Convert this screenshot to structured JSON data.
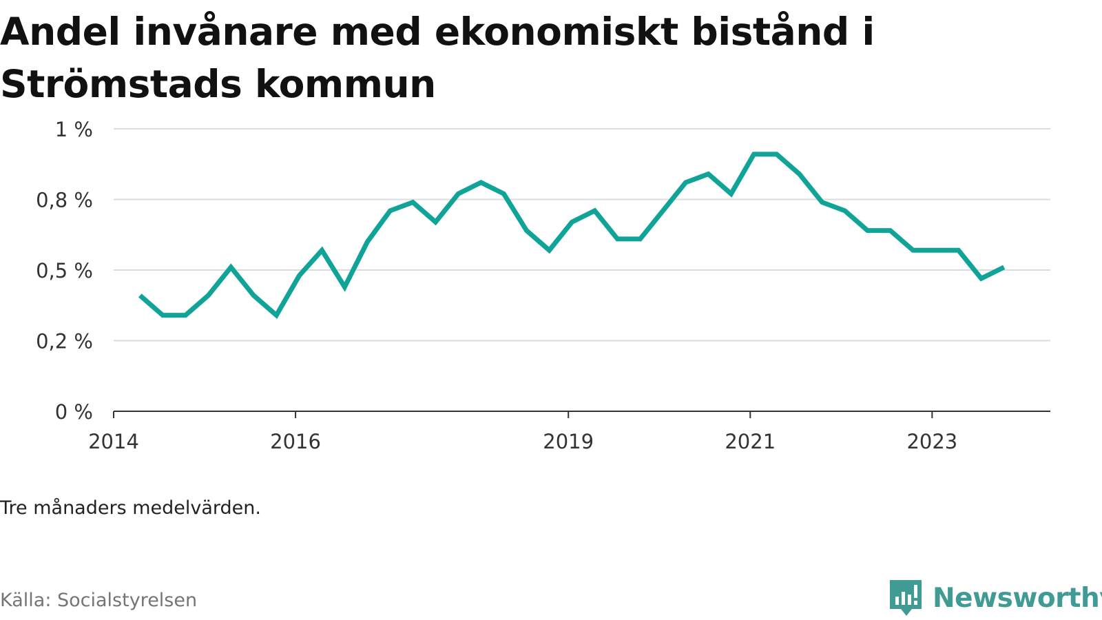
{
  "title": "Andel invånare med ekonomiskt bistånd i Strömstads kommun",
  "note": "Tre månaders medelvärden.",
  "source": "Källa: Socialstyrelsen",
  "brand": {
    "name": "Newsworthy",
    "icon": "newsworthy-logo-icon",
    "color": "#3f9b93"
  },
  "chart_data": {
    "type": "line",
    "title": "Andel invånare med ekonomiskt bistånd i Strömstads kommun",
    "xlabel": "",
    "ylabel": "",
    "xlim": [
      2014.0,
      2024.3
    ],
    "ylim": [
      0,
      1.0
    ],
    "y_ticks": [
      0,
      0.25,
      0.5,
      0.75,
      1.0
    ],
    "y_tick_labels": [
      "0 %",
      "0,2 %",
      "0,5 %",
      "0,8 %",
      "1 %"
    ],
    "x_ticks": [
      2014,
      2016,
      2019,
      2021,
      2023
    ],
    "x_tick_labels": [
      "2014",
      "2016",
      "2019",
      "2021",
      "2023"
    ],
    "grid": true,
    "line_color": "#0fa497",
    "series": [
      {
        "x": [
          2014.29,
          2014.54,
          2014.79,
          2015.04,
          2015.29,
          2015.54,
          2015.79,
          2016.04,
          2016.29,
          2016.54,
          2016.79,
          2017.04,
          2017.29,
          2017.54,
          2017.79,
          2018.04,
          2018.29,
          2018.54,
          2018.79,
          2019.04,
          2019.29,
          2019.54,
          2019.79,
          2020.04,
          2020.29,
          2020.54,
          2020.79,
          2021.04,
          2021.29,
          2021.54,
          2021.79,
          2022.04,
          2022.29,
          2022.54,
          2022.79,
          2023.04,
          2023.29,
          2023.54,
          2023.79
        ],
        "values": [
          0.41,
          0.34,
          0.34,
          0.41,
          0.51,
          0.41,
          0.34,
          0.48,
          0.57,
          0.44,
          0.6,
          0.71,
          0.74,
          0.67,
          0.77,
          0.81,
          0.77,
          0.64,
          0.57,
          0.67,
          0.71,
          0.61,
          0.61,
          0.71,
          0.81,
          0.84,
          0.77,
          0.91,
          0.91,
          0.84,
          0.74,
          0.71,
          0.64,
          0.64,
          0.57,
          0.57,
          0.57,
          0.47,
          0.51
        ]
      }
    ]
  }
}
